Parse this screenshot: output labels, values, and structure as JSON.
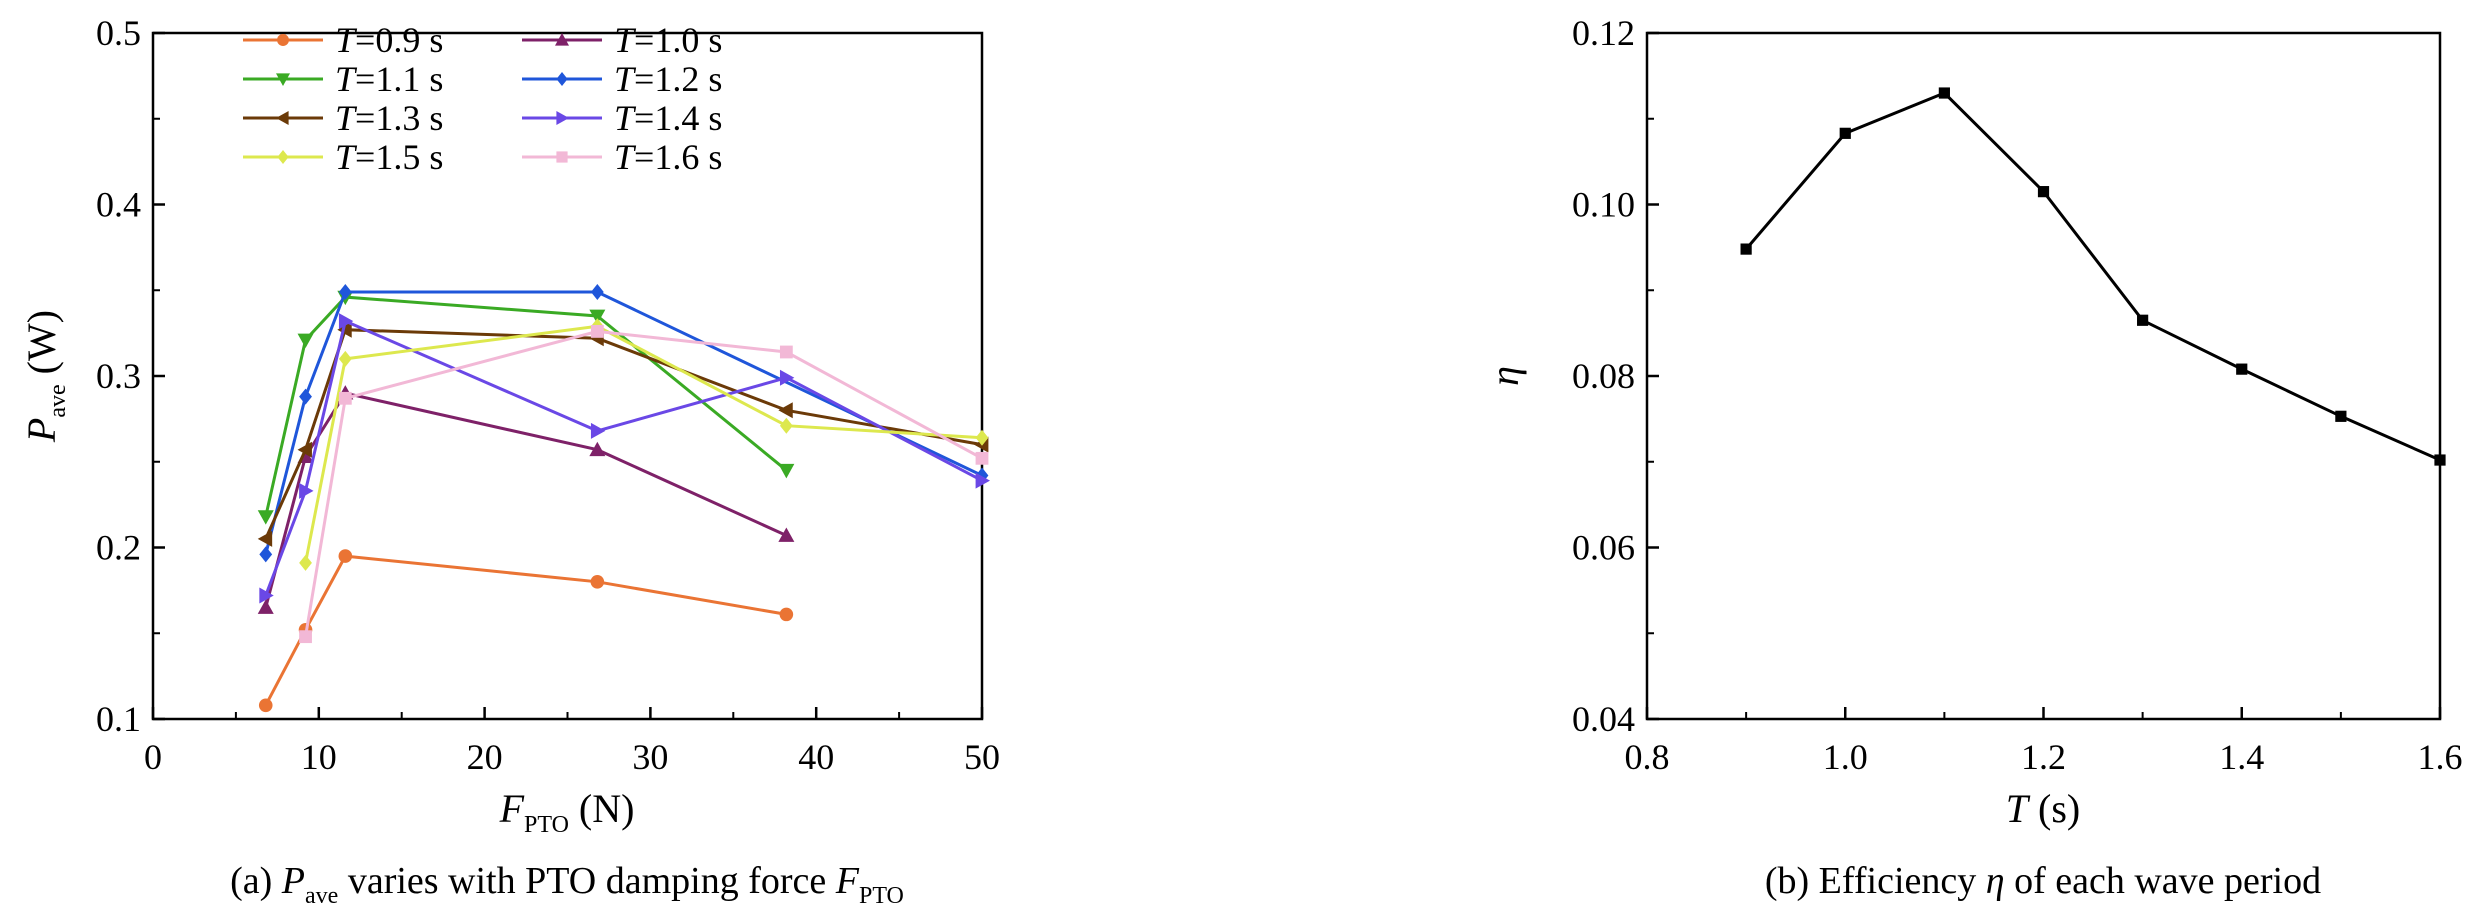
{
  "chart_data": [
    {
      "type": "line",
      "caption_prefix": "(a)",
      "caption_main": "P",
      "caption_main_sub": "ave",
      "caption_mid": " varies with PTO damping force ",
      "caption_end": "F",
      "caption_end_sub": "PTO",
      "xlabel_main": "F",
      "xlabel_sub": "PTO",
      "xlabel_unit": " (N)",
      "ylabel_main": "P",
      "ylabel_sub": "ave",
      "ylabel_unit": " (W)",
      "xlim": [
        0,
        50
      ],
      "ylim": [
        0.1,
        0.5
      ],
      "xticks": [
        0,
        10,
        20,
        30,
        40,
        50
      ],
      "yticks": [
        0.1,
        0.2,
        0.3,
        0.4,
        0.5
      ],
      "ytick_labels": [
        "0.1",
        "0.2",
        "0.3",
        "0.4",
        "0.5"
      ],
      "legend_position": "top-left",
      "series": [
        {
          "name": "=0.9 s",
          "prefix": "T",
          "color": "#ea7434",
          "marker": "circle",
          "x": [
            6.8,
            9.2,
            11.6,
            26.8,
            38.2
          ],
          "y": [
            0.108,
            0.152,
            0.195,
            0.18,
            0.161
          ]
        },
        {
          "name": "=1.0 s",
          "prefix": "T",
          "color": "#7e2168",
          "marker": "triangle-up",
          "x": [
            6.8,
            9.2,
            11.6,
            26.8,
            38.2
          ],
          "y": [
            0.165,
            0.253,
            0.29,
            0.257,
            0.207
          ]
        },
        {
          "name": "=1.1 s",
          "prefix": "T",
          "color": "#3aaa24",
          "marker": "triangle-down",
          "x": [
            6.8,
            9.2,
            11.6,
            26.8,
            38.2
          ],
          "y": [
            0.218,
            0.321,
            0.346,
            0.335,
            0.245
          ]
        },
        {
          "name": "=1.2 s",
          "prefix": "T",
          "color": "#1f56da",
          "marker": "diamond",
          "x": [
            6.8,
            9.2,
            11.6,
            26.8,
            50.0
          ],
          "y": [
            0.196,
            0.288,
            0.349,
            0.349,
            0.242
          ]
        },
        {
          "name": "=1.3 s",
          "prefix": "T",
          "color": "#6b3a08",
          "marker": "triangle-left",
          "x": [
            6.8,
            9.2,
            11.6,
            26.8,
            38.2,
            50.0
          ],
          "y": [
            0.205,
            0.257,
            0.327,
            0.322,
            0.28,
            0.26
          ]
        },
        {
          "name": "=1.4 s",
          "prefix": "T",
          "color": "#6a48e6",
          "marker": "triangle-right",
          "x": [
            6.8,
            9.2,
            11.6,
            26.8,
            38.2,
            50.0
          ],
          "y": [
            0.172,
            0.233,
            0.332,
            0.268,
            0.299,
            0.239
          ]
        },
        {
          "name": "=1.5 s",
          "prefix": "T",
          "color": "#dde84e",
          "marker": "diamond",
          "x": [
            9.2,
            11.6,
            26.8,
            38.2,
            50.0
          ],
          "y": [
            0.191,
            0.31,
            0.329,
            0.271,
            0.264
          ]
        },
        {
          "name": "=1.6 s",
          "prefix": "T",
          "color": "#f2b8d6",
          "marker": "square",
          "x": [
            9.2,
            11.6,
            26.8,
            38.2,
            50.0
          ],
          "y": [
            0.148,
            0.287,
            0.326,
            0.314,
            0.252
          ]
        }
      ]
    },
    {
      "type": "line",
      "caption": "(b) Efficiency ",
      "caption_symbol": "η",
      "caption_end": " of each wave period",
      "xlabel_main": "T",
      "xlabel_unit": " (s)",
      "ylabel": "η",
      "xlim": [
        0.8,
        1.6
      ],
      "ylim": [
        0.04,
        0.12
      ],
      "xticks": [
        0.8,
        1.0,
        1.2,
        1.4,
        1.6
      ],
      "xtick_labels": [
        "0.8",
        "1.0",
        "1.2",
        "1.4",
        "1.6"
      ],
      "yticks": [
        0.04,
        0.06,
        0.08,
        0.1,
        0.12
      ],
      "ytick_labels": [
        "0.04",
        "0.06",
        "0.08",
        "0.10",
        "0.12"
      ],
      "series": [
        {
          "color": "#000000",
          "marker": "square",
          "x": [
            0.9,
            1.0,
            1.1,
            1.2,
            1.3,
            1.4,
            1.5,
            1.6
          ],
          "y": [
            0.0948,
            0.1083,
            0.113,
            0.1015,
            0.0865,
            0.0808,
            0.0753,
            0.0702
          ]
        }
      ]
    }
  ]
}
